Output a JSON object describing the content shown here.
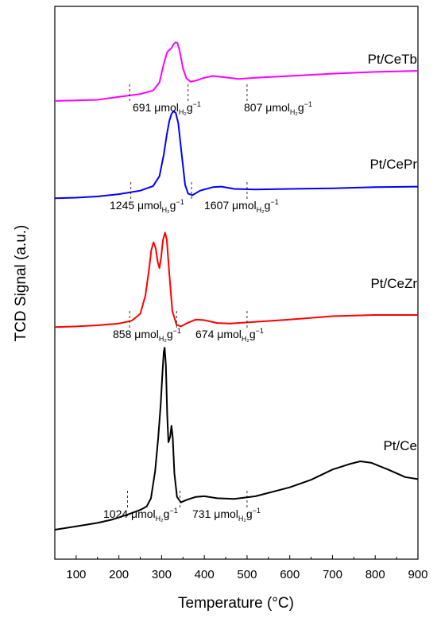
{
  "chart_data": {
    "type": "line",
    "xlabel": "Temperature (°C)",
    "ylabel": "TCD Signal (a.u.)",
    "xlim": [
      50,
      900
    ],
    "xticks": [
      100,
      200,
      300,
      400,
      500,
      600,
      700,
      800,
      900
    ],
    "unit_text": {
      "mu": "μmol",
      "sub": "H₂",
      "g": "g",
      "sup": "−1"
    },
    "series": [
      {
        "name": "Pt/CeTb",
        "color": "#ff00ff",
        "points": [
          [
            50,
            0.96
          ],
          [
            100,
            0.97
          ],
          [
            150,
            0.98
          ],
          [
            200,
            1.03
          ],
          [
            250,
            1.08
          ],
          [
            280,
            1.14
          ],
          [
            295,
            1.28
          ],
          [
            305,
            1.6
          ],
          [
            313,
            1.8
          ],
          [
            318,
            1.84
          ],
          [
            323,
            1.87
          ],
          [
            328,
            1.94
          ],
          [
            333,
            1.97
          ],
          [
            337,
            1.96
          ],
          [
            342,
            1.83
          ],
          [
            350,
            1.52
          ],
          [
            358,
            1.35
          ],
          [
            368,
            1.29
          ],
          [
            380,
            1.31
          ],
          [
            400,
            1.36
          ],
          [
            420,
            1.39
          ],
          [
            445,
            1.37
          ],
          [
            480,
            1.34
          ],
          [
            520,
            1.36
          ],
          [
            600,
            1.39
          ],
          [
            700,
            1.43
          ],
          [
            800,
            1.46
          ],
          [
            900,
            1.48
          ]
        ],
        "annotations": [
          {
            "value": "691",
            "x": 167
          },
          {
            "value": "807",
            "x": 307
          }
        ],
        "markers": [
          225,
          362,
          500
        ]
      },
      {
        "name": "Pt/CePr",
        "color": "#0000ff",
        "points": [
          [
            50,
            0.97
          ],
          [
            100,
            0.98
          ],
          [
            150,
            1.0
          ],
          [
            200,
            1.04
          ],
          [
            250,
            1.1
          ],
          [
            280,
            1.18
          ],
          [
            295,
            1.35
          ],
          [
            305,
            1.72
          ],
          [
            312,
            2.06
          ],
          [
            318,
            2.3
          ],
          [
            323,
            2.42
          ],
          [
            328,
            2.47
          ],
          [
            333,
            2.44
          ],
          [
            339,
            2.26
          ],
          [
            347,
            1.72
          ],
          [
            355,
            1.2
          ],
          [
            362,
            1.05
          ],
          [
            372,
            1.02
          ],
          [
            390,
            1.1
          ],
          [
            420,
            1.16
          ],
          [
            440,
            1.17
          ],
          [
            470,
            1.13
          ],
          [
            520,
            1.12
          ],
          [
            600,
            1.13
          ],
          [
            700,
            1.14
          ],
          [
            800,
            1.16
          ],
          [
            900,
            1.17
          ]
        ],
        "annotations": [
          {
            "value": "1245",
            "x": 138
          },
          {
            "value": "1607",
            "x": 257
          }
        ],
        "markers": [
          228,
          370,
          500
        ]
      },
      {
        "name": "Pt/CeZr",
        "color": "#ff0000",
        "points": [
          [
            50,
            0.97
          ],
          [
            100,
            0.98
          ],
          [
            150,
            1.0
          ],
          [
            200,
            1.03
          ],
          [
            230,
            1.08
          ],
          [
            250,
            1.2
          ],
          [
            262,
            1.52
          ],
          [
            270,
            1.95
          ],
          [
            276,
            2.32
          ],
          [
            281,
            2.45
          ],
          [
            286,
            2.35
          ],
          [
            291,
            2.1
          ],
          [
            295,
            2.0
          ],
          [
            299,
            2.2
          ],
          [
            303,
            2.48
          ],
          [
            308,
            2.62
          ],
          [
            312,
            2.5
          ],
          [
            318,
            1.9
          ],
          [
            325,
            1.25
          ],
          [
            335,
            1.01
          ],
          [
            345,
            0.98
          ],
          [
            360,
            1.04
          ],
          [
            380,
            1.1
          ],
          [
            400,
            1.09
          ],
          [
            430,
            1.04
          ],
          [
            460,
            1.03
          ],
          [
            500,
            1.05
          ],
          [
            600,
            1.1
          ],
          [
            700,
            1.16
          ],
          [
            800,
            1.18
          ],
          [
            900,
            1.18
          ]
        ],
        "annotations": [
          {
            "value": "858",
            "x": 142
          },
          {
            "value": "674",
            "x": 246
          }
        ],
        "markers": [
          225,
          335,
          500
        ]
      },
      {
        "name": "Pt/Ce",
        "color": "#000000",
        "points": [
          [
            50,
            0.5
          ],
          [
            100,
            0.55
          ],
          [
            150,
            0.6
          ],
          [
            185,
            0.65
          ],
          [
            220,
            0.72
          ],
          [
            250,
            0.79
          ],
          [
            265,
            0.84
          ],
          [
            275,
            0.96
          ],
          [
            285,
            1.36
          ],
          [
            292,
            1.84
          ],
          [
            298,
            2.34
          ],
          [
            302,
            2.8
          ],
          [
            305,
            3.1
          ],
          [
            307,
            3.16
          ],
          [
            310,
            2.9
          ],
          [
            313,
            2.2
          ],
          [
            316,
            1.78
          ],
          [
            320,
            1.86
          ],
          [
            323,
            2.02
          ],
          [
            326,
            1.85
          ],
          [
            330,
            1.32
          ],
          [
            336,
            0.98
          ],
          [
            345,
            0.9
          ],
          [
            360,
            0.94
          ],
          [
            380,
            0.98
          ],
          [
            400,
            0.99
          ],
          [
            430,
            0.96
          ],
          [
            470,
            0.95
          ],
          [
            520,
            0.99
          ],
          [
            600,
            1.12
          ],
          [
            650,
            1.23
          ],
          [
            700,
            1.38
          ],
          [
            740,
            1.46
          ],
          [
            765,
            1.5
          ],
          [
            790,
            1.48
          ],
          [
            830,
            1.38
          ],
          [
            870,
            1.27
          ],
          [
            900,
            1.24
          ]
        ],
        "annotations": [
          {
            "value": "1024",
            "x": 130
          },
          {
            "value": "731",
            "x": 242
          }
        ],
        "markers": [
          220,
          343,
          500
        ]
      }
    ]
  }
}
